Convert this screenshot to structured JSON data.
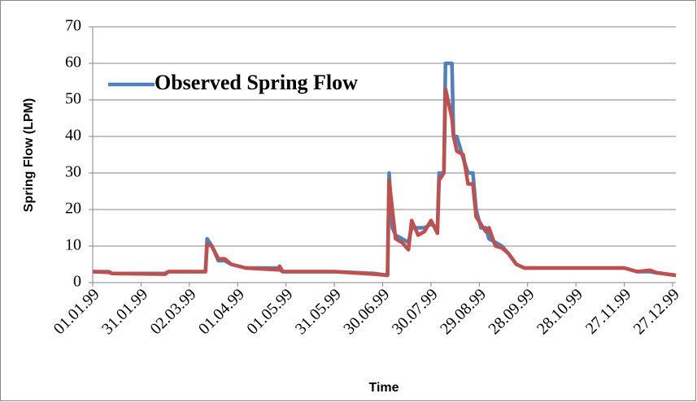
{
  "chart_data": {
    "type": "line",
    "xlabel": "Time",
    "ylabel": "Spring Flow (LPM)",
    "x": [
      "01.01.99",
      "11.01.99",
      "13.01.99",
      "15.02.99",
      "17.02.99",
      "12.03.99",
      "13.03.99",
      "16.03.99",
      "20.03.99",
      "24.03.99",
      "28.03.99",
      "06.04.99",
      "26.04.99",
      "27.04.99",
      "29.04.99",
      "31.05.99",
      "25.06.99",
      "03.07.99",
      "04.07.99",
      "06.07.99",
      "08.07.99",
      "12.07.99",
      "16.07.99",
      "18.07.99",
      "22.07.99",
      "26.07.99",
      "30.07.99",
      "03.08.99",
      "04.08.99",
      "07.08.99",
      "08.08.99",
      "12.08.99",
      "13.08.99",
      "15.08.99",
      "19.08.99",
      "22.08.99",
      "25.08.99",
      "27.08.99",
      "30.08.99",
      "02.09.99",
      "04.09.99",
      "08.09.99",
      "12.09.99",
      "16.09.99",
      "21.09.99",
      "26.09.99",
      "27.11.99",
      "05.12.99",
      "13.12.99",
      "17.12.99",
      "29.12.99"
    ],
    "series": [
      {
        "name": "Observed Spring Flow",
        "color": "#4f81bd",
        "values": [
          3,
          3,
          2.5,
          2.5,
          3,
          3,
          12,
          10,
          6,
          6,
          5,
          4,
          4,
          3.5,
          3,
          3,
          2.5,
          2,
          30,
          15,
          13,
          12,
          11,
          15,
          15,
          15,
          16,
          15,
          30,
          30,
          60,
          60,
          40,
          40,
          34,
          30,
          30,
          20,
          15,
          15,
          12,
          11,
          10,
          8,
          5,
          4,
          4,
          3,
          3,
          2.7,
          2
        ]
      },
      {
        "color": "#c0504d",
        "values": [
          3,
          2.8,
          2.5,
          2.3,
          3,
          3,
          10.5,
          10,
          6.5,
          6.5,
          5,
          4,
          3.5,
          4.5,
          3,
          3,
          2.3,
          2,
          28,
          20,
          12,
          11,
          9,
          17,
          13,
          14,
          17,
          13.5,
          28,
          30,
          53,
          45,
          40,
          36,
          35,
          27,
          27,
          18,
          16,
          14,
          15,
          10,
          9.5,
          8,
          5,
          4,
          4,
          3,
          3.4,
          2.7,
          2
        ]
      }
    ],
    "xlim": [
      "01.01.99",
      "29.12.99"
    ],
    "xticks": [
      "01.01.99",
      "31.01.99",
      "02.03.99",
      "01.04.99",
      "01.05.99",
      "31.05.99",
      "30.06.99",
      "30.07.99",
      "29.08.99",
      "28.09.99",
      "28.10.99",
      "27.11.99",
      "27.12.99"
    ],
    "ylim": [
      0,
      70
    ],
    "yticks": [
      0,
      10,
      20,
      30,
      40,
      50,
      60,
      70
    ],
    "grid": true
  }
}
